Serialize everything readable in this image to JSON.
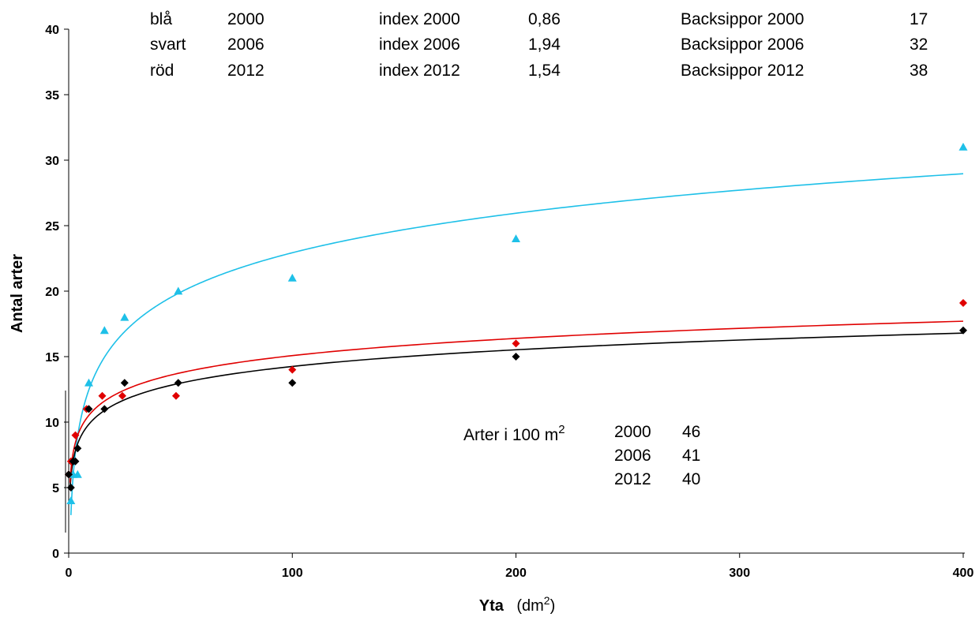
{
  "chart_data": {
    "type": "scatter",
    "xlabel": "Yta",
    "xlabel_unit_base": "(dm",
    "xlabel_unit_sup": "2",
    "xlabel_unit_end": ")",
    "ylabel": "Antal arter",
    "xlim": [
      0,
      400
    ],
    "ylim": [
      0,
      40
    ],
    "x_ticks": [
      "0",
      "100",
      "200",
      "300",
      "400"
    ],
    "y_ticks": [
      "0",
      "5",
      "10",
      "15",
      "20",
      "25",
      "30",
      "35",
      "40"
    ],
    "grid": false,
    "series": [
      {
        "color": "#1ec0e8",
        "marker": "triangle",
        "points": [
          [
            1,
            4
          ],
          [
            2,
            6
          ],
          [
            4,
            6
          ],
          [
            9,
            13
          ],
          [
            16,
            17
          ],
          [
            25,
            18
          ],
          [
            49,
            20
          ],
          [
            100,
            21
          ],
          [
            200,
            24
          ],
          [
            400,
            31
          ]
        ],
        "trend": {
          "a": 2.9,
          "b": 4.35,
          "x_from": 1
        }
      },
      {
        "color": "#000000",
        "marker": "diamond",
        "points": [
          [
            0,
            6
          ],
          [
            1,
            5
          ],
          [
            2,
            7
          ],
          [
            3,
            7
          ],
          [
            4,
            8
          ],
          [
            9,
            11
          ],
          [
            16,
            11
          ],
          [
            25,
            13
          ],
          [
            49,
            13
          ],
          [
            100,
            13
          ],
          [
            200,
            15
          ],
          [
            400,
            17
          ]
        ],
        "trend": {
          "a": 5.8,
          "b": 1.835,
          "x_from": 0.6
        }
      },
      {
        "color": "#e00000",
        "marker": "diamond",
        "points": [
          [
            0,
            6
          ],
          [
            1,
            7
          ],
          [
            3,
            9
          ],
          [
            8,
            11
          ],
          [
            15,
            12
          ],
          [
            24,
            12
          ],
          [
            48,
            12
          ],
          [
            100,
            14
          ],
          [
            200,
            16
          ],
          [
            400,
            19.1
          ]
        ],
        "trend": {
          "a": 6.35,
          "b": 1.895,
          "x_from": 0.6
        }
      }
    ],
    "annotations": {
      "legend_rows": [
        {
          "color": "blå",
          "year": "2000"
        },
        {
          "color": "svart",
          "year": "2006"
        },
        {
          "color": "röd",
          "year": "2012"
        }
      ],
      "index_rows": [
        {
          "label": "index 2000",
          "value": "0,86"
        },
        {
          "label": "index 2006",
          "value": "1,94"
        },
        {
          "label": "index 2012",
          "value": "1,54"
        }
      ],
      "backsippor_rows": [
        {
          "label": "Backsippor 2000",
          "value": "17"
        },
        {
          "label": "Backsippor 2006",
          "value": "32"
        },
        {
          "label": "Backsippor 2012",
          "value": "38"
        }
      ],
      "arter_label": "Arter i 100 m",
      "arter_sup": "2",
      "arter_rows": [
        {
          "year": "2000",
          "value": "46"
        },
        {
          "year": "2006",
          "value": "41"
        },
        {
          "year": "2012",
          "value": "40"
        }
      ]
    }
  }
}
